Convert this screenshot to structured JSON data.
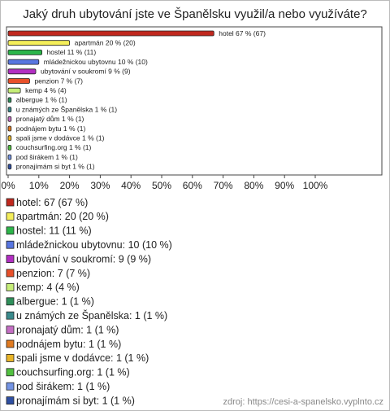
{
  "chart_data": {
    "type": "hbar",
    "title": "Jaký druh ubytování jste ve Španělsku využil/a nebo využíváte?",
    "categories": [
      "hotel",
      "apartmán",
      "hostel",
      "mládežnickou ubytovnu",
      "ubytování v soukromí",
      "penzion",
      "kemp",
      "albergue",
      "u známých ze Španělska",
      "pronajatý dům",
      "podnájem bytu",
      "spali jsme v dodávce",
      "couchsurfing.org",
      "pod širákem",
      "pronajímám si byt"
    ],
    "values": [
      67,
      20,
      11,
      10,
      9,
      7,
      4,
      1,
      1,
      1,
      1,
      1,
      1,
      1,
      1
    ],
    "value_labels": [
      "hotel 67 % (67)",
      "apartmán 20 % (20)",
      "hostel 11 % (11)",
      "mládežnickou ubytovnu 10 % (10)",
      "ubytování v soukromí 9 % (9)",
      "penzion 7 % (7)",
      "kemp 4 % (4)",
      "albergue 1 % (1)",
      "u známých ze Španělska 1 % (1)",
      "pronajatý dům 1 % (1)",
      "podnájem bytu 1 % (1)",
      "spali jsme v dodávce 1 % (1)",
      "couchsurfing.org 1 % (1)",
      "pod širákem 1 % (1)",
      "pronajímám si byt 1 % (1)"
    ],
    "legend_labels": [
      "hotel: 67 (67 %)",
      "apartmán: 20 (20 %)",
      "hostel: 11 (11 %)",
      "mládežnickou ubytovnu: 10 (10 %)",
      "ubytování v soukromí: 9 (9 %)",
      "penzion: 7 (7 %)",
      "kemp: 4 (4 %)",
      "albergue: 1 (1 %)",
      "u známých ze Španělska: 1 (1 %)",
      "pronajatý dům: 1 (1 %)",
      "podnájem bytu: 1 (1 %)",
      "spali jsme v dodávce: 1 (1 %)",
      "couchsurfing.org: 1 (1 %)",
      "pod širákem: 1 (1 %)",
      "pronajímám si byt: 1 (1 %)"
    ],
    "colors": [
      "#c0281e",
      "#f4ee5a",
      "#2cb54a",
      "#5876e0",
      "#b22ec2",
      "#e8502a",
      "#c6ee78",
      "#2e8f5a",
      "#3a8a8c",
      "#c46ec4",
      "#e07a20",
      "#e8b428",
      "#52c040",
      "#7494e4",
      "#2f4fa2"
    ],
    "xlim": [
      0,
      100
    ],
    "xticks": [
      {
        "value": 0,
        "label": "0%"
      },
      {
        "value": 10,
        "label": "10%"
      },
      {
        "value": 20,
        "label": "20%"
      },
      {
        "value": 30,
        "label": "30%"
      },
      {
        "value": 40,
        "label": "40%"
      },
      {
        "value": 50,
        "label": "50%"
      },
      {
        "value": 60,
        "label": "60%"
      },
      {
        "value": 70,
        "label": "70%"
      },
      {
        "value": 80,
        "label": "80%"
      },
      {
        "value": 90,
        "label": "90%"
      },
      {
        "value": 100,
        "label": "100%"
      }
    ],
    "source": "zdroj: https://cesi-a-spanelsko.vyplnto.cz"
  }
}
